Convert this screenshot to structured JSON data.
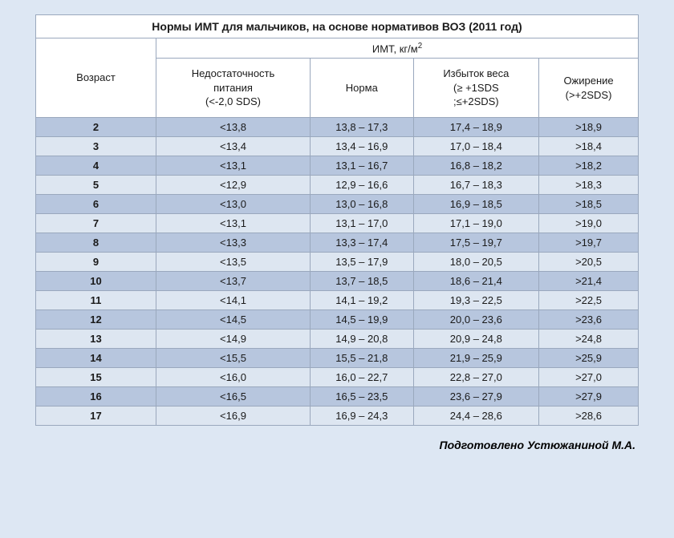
{
  "table": {
    "title": "Нормы ИМТ для мальчиков, на основе нормативов ВОЗ (2011 год)",
    "unit_label_html": "ИМТ, кг/м<sup>2</sup>",
    "age_header": "Возраст",
    "columns": [
      {
        "label_html": "Недостаточность<br>питания<br>(&lt;-2,0 SDS)"
      },
      {
        "label_html": "Норма"
      },
      {
        "label_html": "Избыток веса<br>(≥ +1SDS<br>;≤+2SDS)"
      },
      {
        "label_html": "Ожирение<br>(&gt;+2SDS)"
      }
    ],
    "rows": [
      {
        "age": "2",
        "v": [
          "<13,8",
          "13,8 – 17,3",
          "17,4 – 18,9",
          ">18,9"
        ]
      },
      {
        "age": "3",
        "v": [
          "<13,4",
          "13,4 – 16,9",
          "17,0 – 18,4",
          ">18,4"
        ]
      },
      {
        "age": "4",
        "v": [
          "<13,1",
          "13,1 – 16,7",
          "16,8 – 18,2",
          ">18,2"
        ]
      },
      {
        "age": "5",
        "v": [
          "<12,9",
          "12,9 – 16,6",
          "16,7 – 18,3",
          ">18,3"
        ]
      },
      {
        "age": "6",
        "v": [
          "<13,0",
          "13,0 – 16,8",
          "16,9 – 18,5",
          ">18,5"
        ]
      },
      {
        "age": "7",
        "v": [
          "<13,1",
          "13,1 – 17,0",
          "17,1 – 19,0",
          ">19,0"
        ]
      },
      {
        "age": "8",
        "v": [
          "<13,3",
          "13,3 – 17,4",
          "17,5 – 19,7",
          ">19,7"
        ]
      },
      {
        "age": "9",
        "v": [
          "<13,5",
          "13,5 – 17,9",
          "18,0 – 20,5",
          ">20,5"
        ]
      },
      {
        "age": "10",
        "v": [
          "<13,7",
          "13,7 – 18,5",
          "18,6 – 21,4",
          ">21,4"
        ]
      },
      {
        "age": "11",
        "v": [
          "<14,1",
          "14,1 – 19,2",
          "19,3 – 22,5",
          ">22,5"
        ]
      },
      {
        "age": "12",
        "v": [
          "<14,5",
          "14,5 – 19,9",
          "20,0 – 23,6",
          ">23,6"
        ]
      },
      {
        "age": "13",
        "v": [
          "<14,9",
          "14,9 – 20,8",
          "20,9 – 24,8",
          ">24,8"
        ]
      },
      {
        "age": "14",
        "v": [
          "<15,5",
          "15,5 – 21,8",
          "21,9 – 25,9",
          ">25,9"
        ]
      },
      {
        "age": "15",
        "v": [
          "<16,0",
          "16,0 – 22,7",
          "22,8 – 27,0",
          ">27,0"
        ]
      },
      {
        "age": "16",
        "v": [
          "<16,5",
          "16,5 – 23,5",
          "23,6 – 27,9",
          ">27,9"
        ]
      },
      {
        "age": "17",
        "v": [
          "<16,9",
          "16,9 – 24,3",
          "24,4 – 28,6",
          ">28,6"
        ]
      }
    ],
    "colors": {
      "page_bg": "#dde7f3",
      "row_odd": "#b7c6de",
      "row_even": "#dde6f1",
      "border": "#9aa8bd",
      "header_bg": "#ffffff"
    }
  },
  "credit": "Подготовлено Устюжаниной М.А."
}
